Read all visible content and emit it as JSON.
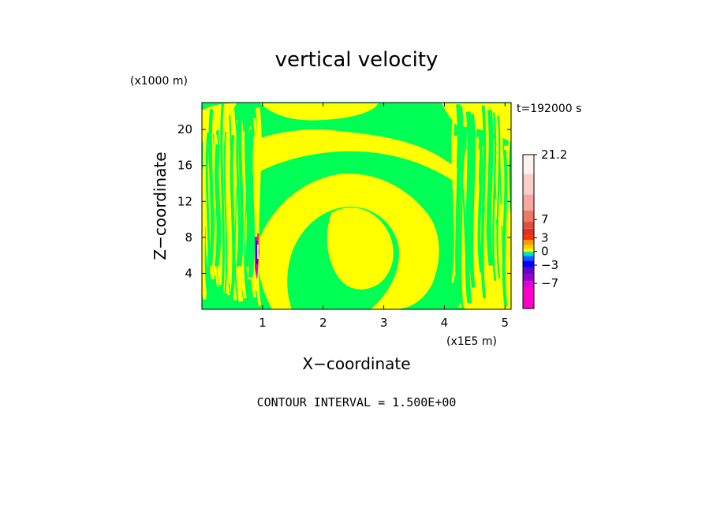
{
  "chart_data": {
    "type": "heatmap",
    "title": "vertical velocity",
    "time_label": "t=192000 s",
    "xlabel": "X−coordinate",
    "ylabel": "Z−coordinate",
    "x_units": "(x1E5 m)",
    "y_units": "(x1000 m)",
    "xlim": [
      0,
      5.1
    ],
    "ylim": [
      0,
      23
    ],
    "x_ticks": [
      1,
      2,
      3,
      4,
      5
    ],
    "y_ticks": [
      4,
      8,
      12,
      16,
      20
    ],
    "footer": "CONTOUR INTERVAL = 1.500E+00",
    "field_colors": {
      "negative_small": "#00ff55",
      "positive_small": "#ffff00"
    },
    "colorbar": {
      "min": -12.5,
      "max": 21.2,
      "interval": 1.5,
      "tick_labels": [
        {
          "value": 21.2,
          "label": "21.2"
        },
        {
          "value": 7,
          "label": "7"
        },
        {
          "value": 3,
          "label": "3"
        },
        {
          "value": 0,
          "label": "0"
        },
        {
          "value": -3,
          "label": "−3"
        },
        {
          "value": -7,
          "label": "−7"
        }
      ],
      "bands": [
        {
          "from": -12.5,
          "to": -8.0,
          "color": "#ff00cc"
        },
        {
          "from": -8.0,
          "to": -6.5,
          "color": "#dd00dd"
        },
        {
          "from": -6.5,
          "to": -5.0,
          "color": "#9900cc"
        },
        {
          "from": -5.0,
          "to": -3.5,
          "color": "#6600cc"
        },
        {
          "from": -3.5,
          "to": -2.0,
          "color": "#0000ff"
        },
        {
          "from": -2.0,
          "to": -1.0,
          "color": "#0066ff"
        },
        {
          "from": -1.0,
          "to": -0.5,
          "color": "#00ccff"
        },
        {
          "from": -0.5,
          "to": 0.0,
          "color": "#00ff55"
        },
        {
          "from": 0.0,
          "to": 0.5,
          "color": "#ffff00"
        },
        {
          "from": 0.5,
          "to": 1.5,
          "color": "#ffcc00"
        },
        {
          "from": 1.5,
          "to": 2.5,
          "color": "#ff9900"
        },
        {
          "from": 2.5,
          "to": 3.5,
          "color": "#ff3300"
        },
        {
          "from": 3.5,
          "to": 5.0,
          "color": "#dd3322"
        },
        {
          "from": 5.0,
          "to": 6.5,
          "color": "#e05040"
        },
        {
          "from": 6.5,
          "to": 9.0,
          "color": "#ee7766"
        },
        {
          "from": 9.0,
          "to": 12.5,
          "color": "#f7a9a0"
        },
        {
          "from": 12.5,
          "to": 17.0,
          "color": "#fbcfc8"
        },
        {
          "from": 17.0,
          "to": 21.2,
          "color": "#fff3f0"
        }
      ]
    }
  }
}
